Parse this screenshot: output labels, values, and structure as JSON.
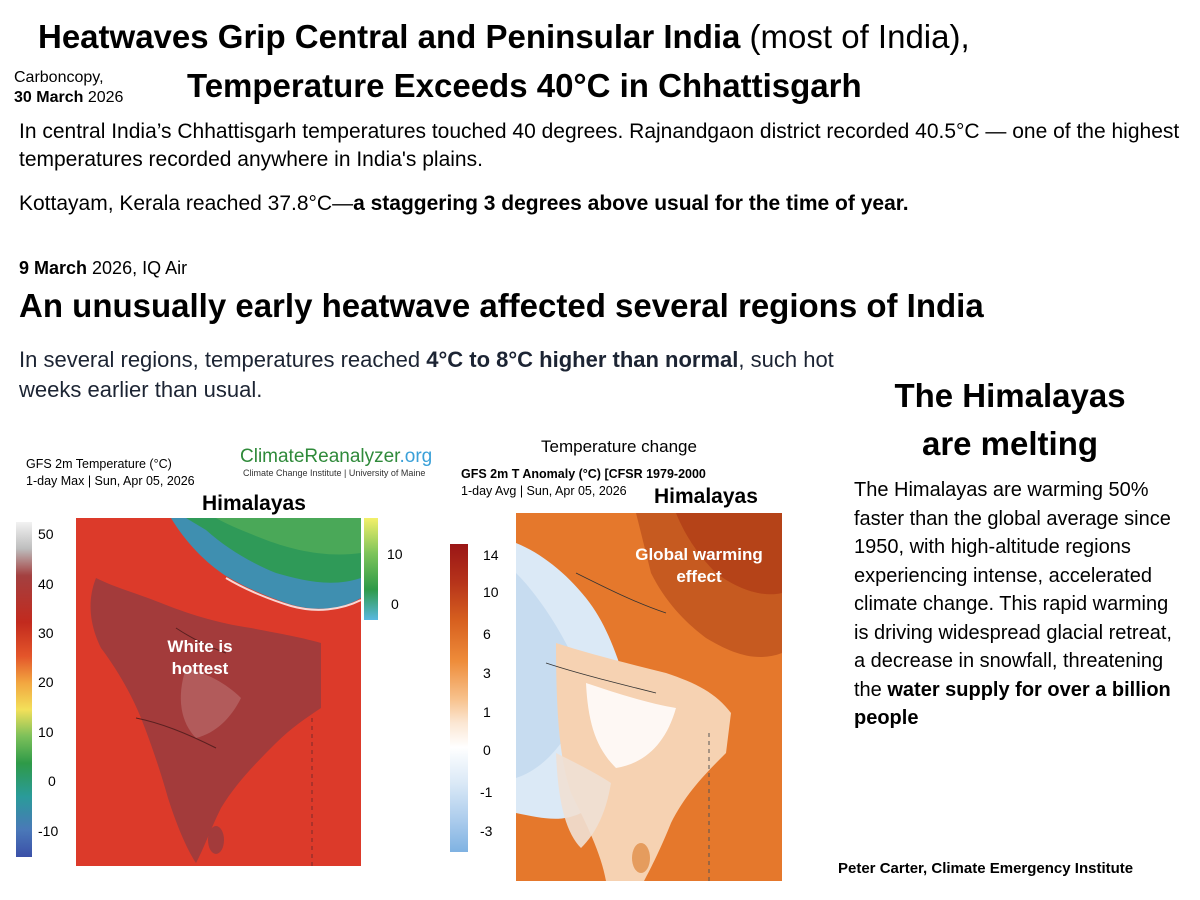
{
  "header": {
    "title_line1_bold": "Heatwaves Grip Central and Peninsular India",
    "title_line1_normal": " (most of India),",
    "title_line2": "Temperature Exceeds 40°C in Chhattisgarh",
    "source_name": "Carboncopy,",
    "source_date_bold": "30 March",
    "source_year": " 2026"
  },
  "paragraph1": "In central India’s Chhattisgarh temperatures touched 40 degrees. Rajnandgaon district  recorded 40.5°C — one of the highest temperatures recorded anywhere in India's plains.",
  "paragraph2": {
    "normal": "Kottayam, Kerala reached 37.8°C—",
    "bold": "a staggering 3 degrees above usual for the time of year."
  },
  "section2": {
    "source_date_bold": "9 March",
    "source_rest": " 2026,  IQ Air",
    "heading": "An unusually early heatwave affected several regions of India",
    "text_before": "In several regions, temperatures reached ",
    "text_bold": "4°C to 8°C higher than normal",
    "text_after": ", such hot weeks earlier than usual."
  },
  "himalayas": {
    "title_line1": "The Himalayas",
    "title_line2": "are melting",
    "text": "The Himalayas are warming 50% faster than the global average since 1950, with high-altitude regions experiencing intense, accelerated climate change. This rapid warming is driving widespread glacial retreat, a decrease in snowfall, threatening the ",
    "text_bold": "water supply for over a billion people"
  },
  "map1": {
    "caption_line1": "GFS 2m Temperature (°C)",
    "caption_line2": "1-day Max | Sun, Apr 05, 2026",
    "logo_main": "ClimateReanalyzer",
    "logo_suffix": ".org",
    "logo_sub": "Climate Change Institute | University of Maine",
    "label_region": "Himalayas",
    "label_overlay_line1": "White is",
    "label_overlay_line2": "hottest",
    "colorbar_ticks": [
      "50",
      "40",
      "30",
      "20",
      "10",
      "0",
      "-10"
    ],
    "snow_ticks": [
      "10",
      "0"
    ]
  },
  "map2": {
    "title": "Temperature change",
    "caption_line1": "GFS 2m T Anomaly (°C) [CFSR 1979-2000",
    "caption_line2": "1-day Avg | Sun, Apr 05, 2026",
    "label_region": "Himalayas",
    "label_overlay_line1": "Global warming",
    "label_overlay_line2": "effect",
    "colorbar_ticks": [
      "14",
      "10",
      "6",
      "3",
      "1",
      "0",
      "-1",
      "-3"
    ]
  },
  "credit": "Peter Carter, Climate Emergency Institute",
  "colors": {
    "map_hot": "#d93a2b",
    "map_hottest": "#a53a3a",
    "anomaly_warm": "#e07a2a",
    "anomaly_cool": "#cfe2f3"
  }
}
